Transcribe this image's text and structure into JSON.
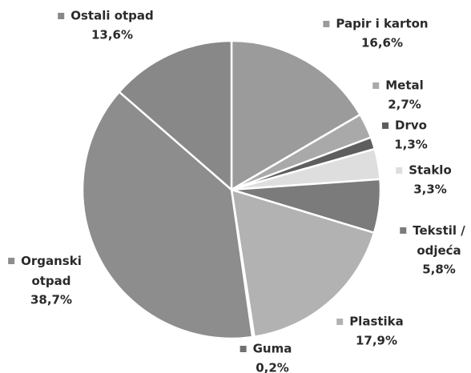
{
  "chart_data": {
    "type": "pie",
    "categories": [
      "Papir i karton",
      "Metal",
      "Drvo",
      "Staklo",
      "Tekstil / odjeća",
      "Plastika",
      "Guma",
      "Organski otpad",
      "Ostali otpad"
    ],
    "values": [
      16.6,
      2.7,
      1.3,
      3.3,
      5.8,
      17.9,
      0.2,
      38.7,
      13.6
    ],
    "value_labels": [
      "16,6%",
      "2,7%",
      "1,3%",
      "3,3%",
      "5,8%",
      "17,9%",
      "0,2%",
      "38,7%",
      "13,6%"
    ],
    "colors": [
      "#9b9b9b",
      "#a9a9a9",
      "#5e5e5e",
      "#dedede",
      "#7b7b7b",
      "#b2b2b2",
      "#707070",
      "#8d8d8d",
      "#888888"
    ]
  }
}
